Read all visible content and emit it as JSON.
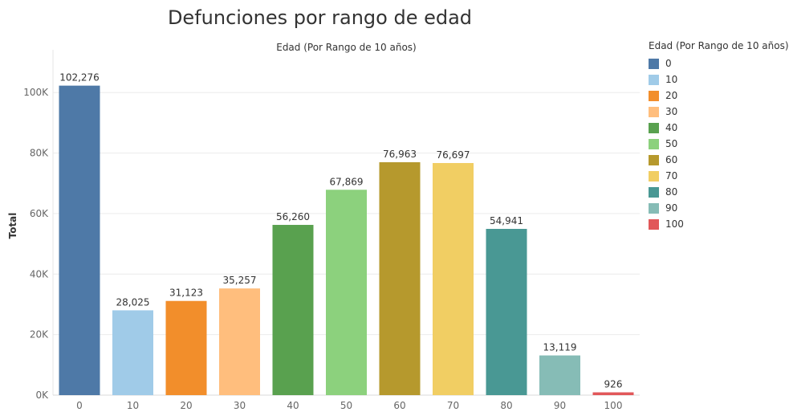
{
  "chart_data": {
    "type": "bar",
    "title": "Defunciones por rango de edad",
    "top_axis_label": "Edad (Por Rango de 10 años)",
    "xlabel": "",
    "ylabel": "Total",
    "categories": [
      "0",
      "10",
      "20",
      "30",
      "40",
      "50",
      "60",
      "70",
      "80",
      "90",
      "100"
    ],
    "values": [
      102276,
      28025,
      31123,
      35257,
      56260,
      67869,
      76963,
      76697,
      54941,
      13119,
      926
    ],
    "value_labels": [
      "102,276",
      "28,025",
      "31,123",
      "35,257",
      "56,260",
      "67,869",
      "76,963",
      "76,697",
      "54,941",
      "13,119",
      "926"
    ],
    "colors": [
      "#4e79a7",
      "#a0cbe8",
      "#f28e2b",
      "#ffbe7d",
      "#59a14f",
      "#8cd17d",
      "#b6992d",
      "#f1ce63",
      "#499894",
      "#86bcb6",
      "#e15759"
    ],
    "ylim": [
      0,
      112000
    ],
    "yticks": [
      0,
      20000,
      40000,
      60000,
      80000,
      100000
    ],
    "ytick_labels": [
      "0K",
      "20K",
      "40K",
      "60K",
      "80K",
      "100K"
    ],
    "grid": true,
    "legend": {
      "title": "Edad (Por Rango de 10 años)",
      "placement": "right",
      "entries": [
        "0",
        "10",
        "20",
        "30",
        "40",
        "50",
        "60",
        "70",
        "80",
        "90",
        "100"
      ]
    }
  }
}
